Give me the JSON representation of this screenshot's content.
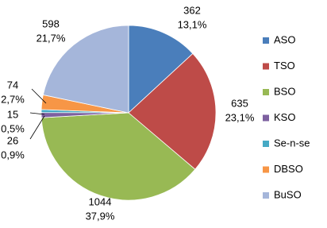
{
  "chart_data": {
    "type": "pie",
    "categories": [
      "ASO",
      "TSO",
      "BSO",
      "KSO",
      "Se-n-se",
      "DBSO",
      "BuSO"
    ],
    "values": [
      362,
      635,
      1044,
      26,
      15,
      74,
      598
    ],
    "percent_labels": [
      "13,1%",
      "23,1%",
      "37,9%",
      "0,9%",
      "0,5%",
      "2,7%",
      "21,7%"
    ],
    "colors": [
      "#4a7ebb",
      "#be4b48",
      "#98b954",
      "#7d60a0",
      "#46aac5",
      "#f79646",
      "#a5b6da"
    ],
    "legend": "right"
  }
}
